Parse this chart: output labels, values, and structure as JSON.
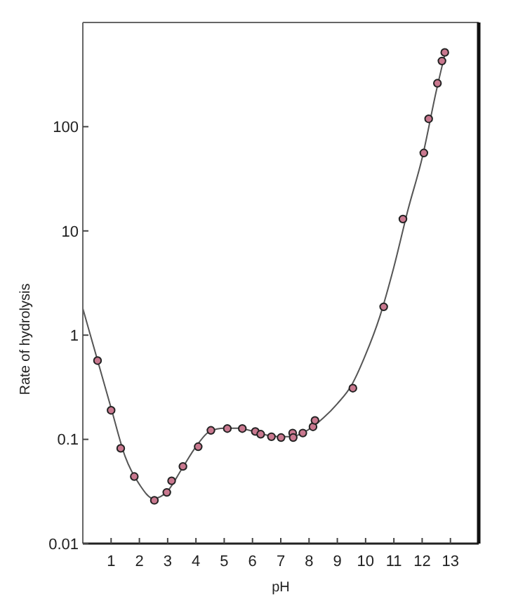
{
  "chart_data": {
    "type": "scatter",
    "xlabel": "pH",
    "ylabel": "Rate of hydrolysis",
    "log": "y",
    "xlim": [
      0,
      14
    ],
    "ylim": [
      0.01,
      1000
    ],
    "xticks": [
      1,
      2,
      3,
      4,
      5,
      6,
      7,
      8,
      9,
      10,
      11,
      12,
      13
    ],
    "yticks": [
      0.01,
      0.1,
      1,
      10,
      100
    ],
    "grid": false,
    "series": [
      {
        "type": "line",
        "color": "#555555",
        "marker": "none",
        "line_style": "solid",
        "x": [
          0,
          0.5,
          1,
          1.5,
          2,
          2.5,
          3,
          3.5,
          4,
          4.5,
          5,
          5.5,
          6,
          6.5,
          7,
          7.5,
          8,
          8.5,
          9,
          9.5,
          10,
          10.5,
          11,
          11.5,
          12,
          12.5,
          12.85
        ],
        "values": [
          1.8,
          0.6,
          0.2,
          0.068,
          0.037,
          0.027,
          0.032,
          0.052,
          0.085,
          0.12,
          0.128,
          0.128,
          0.12,
          0.11,
          0.106,
          0.108,
          0.125,
          0.16,
          0.22,
          0.33,
          0.65,
          1.5,
          4.5,
          16,
          50,
          220,
          560
        ]
      },
      {
        "color": "#c9788f",
        "marker": "circle",
        "x": [
          0.52,
          1.0,
          1.34,
          1.82,
          2.53,
          2.97,
          3.14,
          3.54,
          4.08,
          4.53,
          5.11,
          5.64,
          6.1,
          6.29,
          6.67,
          7.01,
          7.42,
          7.44,
          7.78,
          8.14,
          8.21,
          9.55,
          10.64,
          11.32,
          12.06,
          12.23,
          12.54,
          12.7,
          12.8
        ],
        "values": [
          0.57,
          0.19,
          0.082,
          0.044,
          0.026,
          0.031,
          0.04,
          0.055,
          0.085,
          0.122,
          0.127,
          0.127,
          0.119,
          0.112,
          0.106,
          0.104,
          0.115,
          0.104,
          0.115,
          0.132,
          0.152,
          0.31,
          1.87,
          13,
          56,
          119,
          261,
          427,
          516
        ]
      }
    ]
  }
}
